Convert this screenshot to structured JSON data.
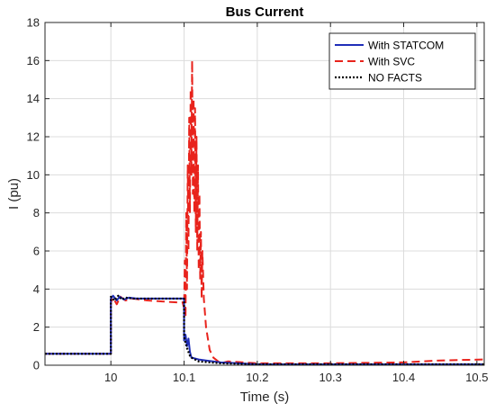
{
  "chart_data": {
    "type": "line",
    "title": "Bus Current",
    "xlabel": "Time (s)",
    "ylabel": "I (pu)",
    "xlim": [
      9.91,
      10.51
    ],
    "ylim": [
      0,
      18
    ],
    "xticks": [
      10,
      10.1,
      10.2,
      10.3,
      10.4,
      10.5
    ],
    "xtick_labels": [
      "10",
      "10.1",
      "10.2",
      "10.3",
      "10.4",
      "10.5"
    ],
    "yticks": [
      0,
      2,
      4,
      6,
      8,
      10,
      12,
      14,
      16,
      18
    ],
    "ytick_labels": [
      "0",
      "2",
      "4",
      "6",
      "8",
      "10",
      "12",
      "14",
      "16",
      "18"
    ],
    "grid": true,
    "legend_position": "top-right",
    "series": [
      {
        "name": "With STATCOM",
        "color": "#1f2db8",
        "style": "solid",
        "x": [
          9.91,
          10.0,
          10.0,
          10.003,
          10.008,
          10.012,
          10.018,
          10.025,
          10.035,
          10.05,
          10.07,
          10.09,
          10.1,
          10.1,
          10.102,
          10.104,
          10.106,
          10.108,
          10.11,
          10.12,
          10.13,
          10.15,
          10.2,
          10.3,
          10.4,
          10.51
        ],
        "y": [
          0.6,
          0.6,
          3.5,
          3.65,
          3.4,
          3.6,
          3.45,
          3.55,
          3.5,
          3.5,
          3.5,
          3.5,
          3.5,
          1.3,
          1.6,
          1.0,
          1.4,
          0.7,
          0.4,
          0.3,
          0.25,
          0.15,
          0.05,
          0.05,
          0.05,
          0.05
        ]
      },
      {
        "name": "With SVC",
        "color": "#e8231c",
        "style": "dashed",
        "x": [
          9.91,
          10.0,
          10.0,
          10.003,
          10.008,
          10.013,
          10.02,
          10.03,
          10.05,
          10.07,
          10.09,
          10.098,
          10.1,
          10.101,
          10.102,
          10.103,
          10.104,
          10.105,
          10.106,
          10.107,
          10.108,
          10.109,
          10.11,
          10.111,
          10.112,
          10.113,
          10.114,
          10.115,
          10.116,
          10.117,
          10.118,
          10.119,
          10.12,
          10.121,
          10.122,
          10.123,
          10.124,
          10.125,
          10.127,
          10.13,
          10.135,
          10.14,
          10.15,
          10.16,
          10.2,
          10.3,
          10.4,
          10.45,
          10.51
        ],
        "y": [
          0.6,
          0.6,
          3.3,
          3.55,
          3.2,
          3.6,
          3.4,
          3.5,
          3.4,
          3.35,
          3.3,
          3.3,
          3.0,
          5.5,
          2.5,
          8.0,
          4.0,
          10.5,
          6.0,
          13.0,
          8.0,
          14.5,
          10.0,
          16.0,
          9.0,
          14.0,
          8.0,
          13.5,
          7.0,
          12.0,
          6.0,
          10.5,
          5.0,
          9.0,
          4.5,
          7.0,
          3.5,
          6.0,
          3.5,
          2.0,
          0.8,
          0.4,
          0.1,
          0.2,
          0.1,
          0.1,
          0.15,
          0.25,
          0.3
        ]
      },
      {
        "name": "NO FACTS",
        "color": "#000000",
        "style": "dotted",
        "x": [
          9.91,
          10.0,
          10.0,
          10.005,
          10.01,
          10.015,
          10.02,
          10.03,
          10.05,
          10.07,
          10.09,
          10.1,
          10.1,
          10.102,
          10.104,
          10.106,
          10.108,
          10.11,
          10.12,
          10.15,
          10.2,
          10.3,
          10.4,
          10.51
        ],
        "y": [
          0.6,
          0.6,
          3.6,
          3.4,
          3.65,
          3.45,
          3.55,
          3.5,
          3.5,
          3.5,
          3.5,
          3.5,
          1.5,
          1.2,
          0.9,
          0.7,
          0.5,
          0.4,
          0.2,
          0.1,
          0.05,
          0.05,
          0.05,
          0.05
        ]
      }
    ]
  }
}
